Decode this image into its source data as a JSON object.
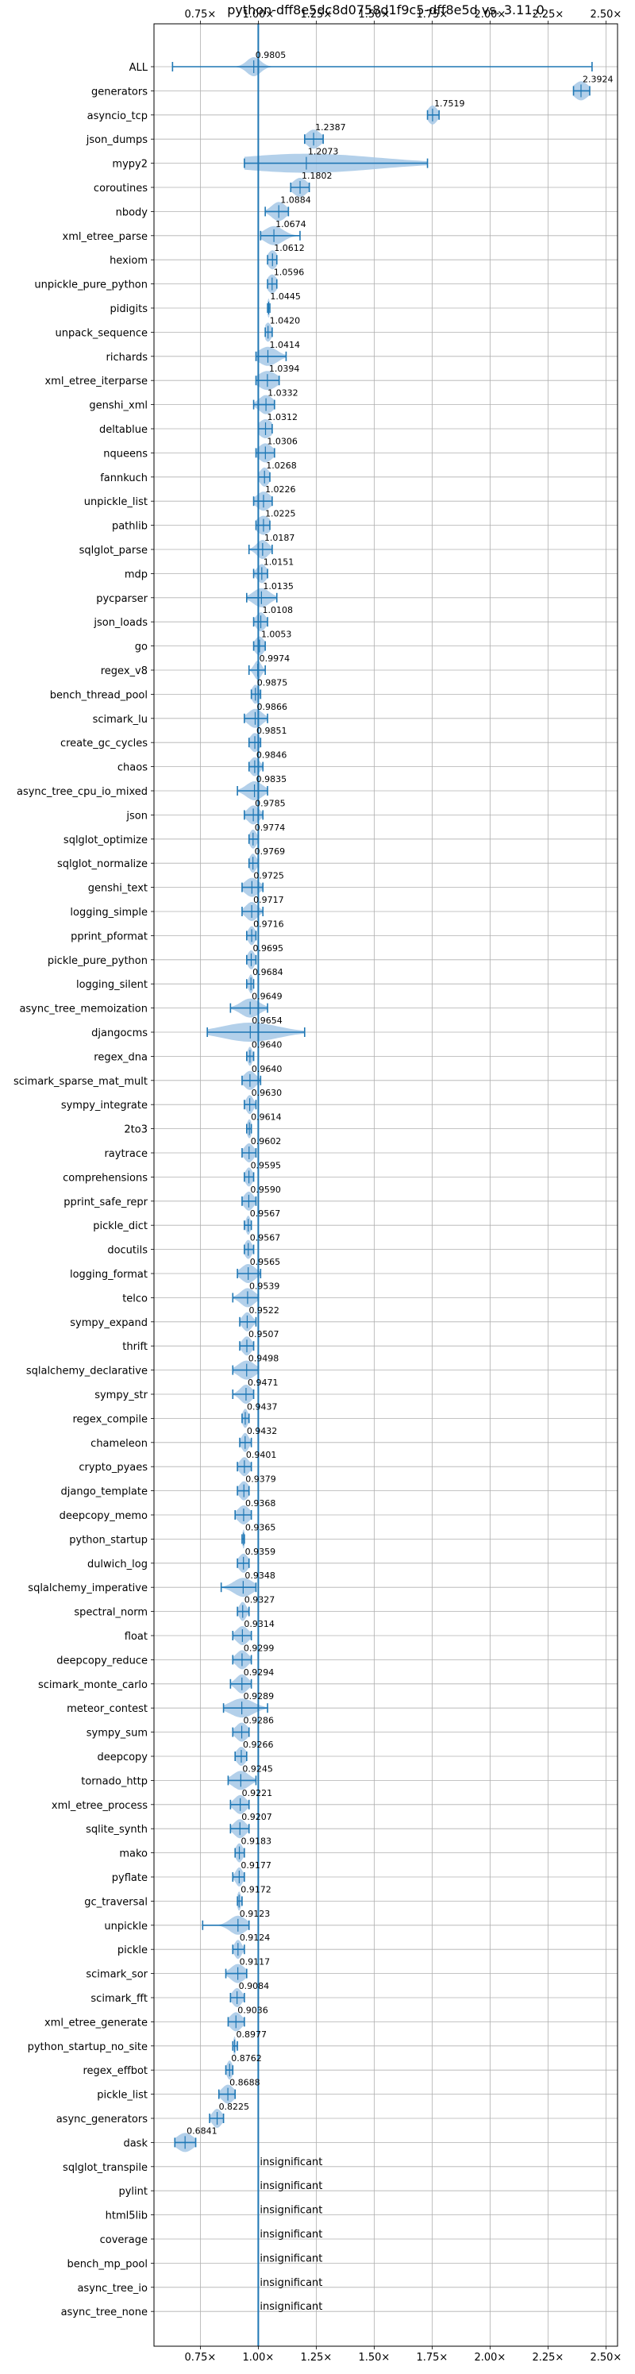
{
  "chart_data": {
    "type": "violin",
    "title": "python-dff8e5dc8d0758d1f9c5-dff8e5d vs. 3.11.0",
    "orientation": "horizontal",
    "xlim": [
      0.55,
      2.55
    ],
    "x_ticks": [
      0.75,
      1.0,
      1.25,
      1.5,
      1.75,
      2.0,
      2.25,
      2.5
    ],
    "x_tick_labels": [
      "0.75×",
      "1.00×",
      "1.25×",
      "1.50×",
      "1.75×",
      "2.00×",
      "2.25×",
      "2.50×"
    ],
    "reference_line": 1.0,
    "grid": true,
    "colors": {
      "violin": "#a6c8e6",
      "line": "#1f77b4"
    },
    "insignificant_label": "insignificant",
    "benchmarks": [
      {
        "name": "ALL",
        "value": 0.9805,
        "label": "0.9805",
        "min": 0.63,
        "max": 2.44,
        "spread": 0.03
      },
      {
        "name": "generators",
        "value": 2.3924,
        "label": "2.3924",
        "min": 2.36,
        "max": 2.43,
        "spread": 0.03
      },
      {
        "name": "asyncio_tcp",
        "value": 1.7519,
        "label": "1.7519",
        "min": 1.73,
        "max": 1.78,
        "spread": 0.02
      },
      {
        "name": "json_dumps",
        "value": 1.2387,
        "label": "1.2387",
        "min": 1.2,
        "max": 1.28,
        "spread": 0.03
      },
      {
        "name": "mypy2",
        "value": 1.2073,
        "label": "1.2073",
        "min": 0.94,
        "max": 1.73,
        "spread": 0.3
      },
      {
        "name": "coroutines",
        "value": 1.1802,
        "label": "1.1802",
        "min": 1.14,
        "max": 1.22,
        "spread": 0.03
      },
      {
        "name": "nbody",
        "value": 1.0884,
        "label": "1.0884",
        "min": 1.03,
        "max": 1.13,
        "spread": 0.03
      },
      {
        "name": "xml_etree_parse",
        "value": 1.0674,
        "label": "1.0674",
        "min": 1.01,
        "max": 1.18,
        "spread": 0.04
      },
      {
        "name": "hexiom",
        "value": 1.0612,
        "label": "1.0612",
        "min": 1.04,
        "max": 1.08,
        "spread": 0.02
      },
      {
        "name": "unpickle_pure_python",
        "value": 1.0596,
        "label": "1.0596",
        "min": 1.04,
        "max": 1.08,
        "spread": 0.02
      },
      {
        "name": "pidigits",
        "value": 1.0445,
        "label": "1.0445",
        "min": 1.04,
        "max": 1.05,
        "spread": 0.005
      },
      {
        "name": "unpack_sequence",
        "value": 1.042,
        "label": "1.0420",
        "min": 1.03,
        "max": 1.06,
        "spread": 0.015
      },
      {
        "name": "richards",
        "value": 1.0414,
        "label": "1.0414",
        "min": 0.99,
        "max": 1.12,
        "spread": 0.04
      },
      {
        "name": "xml_etree_iterparse",
        "value": 1.0394,
        "label": "1.0394",
        "min": 0.99,
        "max": 1.09,
        "spread": 0.04
      },
      {
        "name": "genshi_xml",
        "value": 1.0332,
        "label": "1.0332",
        "min": 0.98,
        "max": 1.07,
        "spread": 0.03
      },
      {
        "name": "deltablue",
        "value": 1.0312,
        "label": "1.0312",
        "min": 1.0,
        "max": 1.06,
        "spread": 0.03
      },
      {
        "name": "nqueens",
        "value": 1.0306,
        "label": "1.0306",
        "min": 0.99,
        "max": 1.07,
        "spread": 0.03
      },
      {
        "name": "fannkuch",
        "value": 1.0268,
        "label": "1.0268",
        "min": 1.0,
        "max": 1.05,
        "spread": 0.02
      },
      {
        "name": "unpickle_list",
        "value": 1.0226,
        "label": "1.0226",
        "min": 0.98,
        "max": 1.06,
        "spread": 0.03
      },
      {
        "name": "pathlib",
        "value": 1.0225,
        "label": "1.0225",
        "min": 0.99,
        "max": 1.05,
        "spread": 0.03
      },
      {
        "name": "sqlglot_parse",
        "value": 1.0187,
        "label": "1.0187",
        "min": 0.96,
        "max": 1.06,
        "spread": 0.025
      },
      {
        "name": "mdp",
        "value": 1.0151,
        "label": "1.0151",
        "min": 0.98,
        "max": 1.04,
        "spread": 0.02
      },
      {
        "name": "pycparser",
        "value": 1.0135,
        "label": "1.0135",
        "min": 0.95,
        "max": 1.08,
        "spread": 0.035
      },
      {
        "name": "json_loads",
        "value": 1.0108,
        "label": "1.0108",
        "min": 0.98,
        "max": 1.04,
        "spread": 0.02
      },
      {
        "name": "go",
        "value": 1.0053,
        "label": "1.0053",
        "min": 0.98,
        "max": 1.03,
        "spread": 0.02
      },
      {
        "name": "regex_v8",
        "value": 0.9974,
        "label": "0.9974",
        "min": 0.96,
        "max": 1.03,
        "spread": 0.015
      },
      {
        "name": "bench_thread_pool",
        "value": 0.9875,
        "label": "0.9875",
        "min": 0.97,
        "max": 1.01,
        "spread": 0.015
      },
      {
        "name": "scimark_lu",
        "value": 0.9866,
        "label": "0.9866",
        "min": 0.94,
        "max": 1.04,
        "spread": 0.03
      },
      {
        "name": "create_gc_cycles",
        "value": 0.9851,
        "label": "0.9851",
        "min": 0.96,
        "max": 1.01,
        "spread": 0.02
      },
      {
        "name": "chaos",
        "value": 0.9846,
        "label": "0.9846",
        "min": 0.96,
        "max": 1.02,
        "spread": 0.02
      },
      {
        "name": "async_tree_cpu_io_mixed",
        "value": 0.9835,
        "label": "0.9835",
        "min": 0.91,
        "max": 1.04,
        "spread": 0.035
      },
      {
        "name": "json",
        "value": 0.9785,
        "label": "0.9785",
        "min": 0.94,
        "max": 1.02,
        "spread": 0.025
      },
      {
        "name": "sqlglot_optimize",
        "value": 0.9774,
        "label": "0.9774",
        "min": 0.96,
        "max": 1.0,
        "spread": 0.015
      },
      {
        "name": "sqlglot_normalize",
        "value": 0.9769,
        "label": "0.9769",
        "min": 0.96,
        "max": 1.0,
        "spread": 0.015
      },
      {
        "name": "genshi_text",
        "value": 0.9725,
        "label": "0.9725",
        "min": 0.93,
        "max": 1.02,
        "spread": 0.03
      },
      {
        "name": "logging_simple",
        "value": 0.9717,
        "label": "0.9717",
        "min": 0.93,
        "max": 1.02,
        "spread": 0.025
      },
      {
        "name": "pprint_pformat",
        "value": 0.9716,
        "label": "0.9716",
        "min": 0.95,
        "max": 0.99,
        "spread": 0.015
      },
      {
        "name": "pickle_pure_python",
        "value": 0.9695,
        "label": "0.9695",
        "min": 0.95,
        "max": 0.99,
        "spread": 0.015
      },
      {
        "name": "logging_silent",
        "value": 0.9684,
        "label": "0.9684",
        "min": 0.95,
        "max": 0.98,
        "spread": 0.01
      },
      {
        "name": "async_tree_memoization",
        "value": 0.9649,
        "label": "0.9649",
        "min": 0.88,
        "max": 1.04,
        "spread": 0.04
      },
      {
        "name": "djangocms",
        "value": 0.9654,
        "label": "0.9654",
        "min": 0.78,
        "max": 1.2,
        "spread": 0.12
      },
      {
        "name": "regex_dna",
        "value": 0.964,
        "label": "0.9640",
        "min": 0.95,
        "max": 0.98,
        "spread": 0.01
      },
      {
        "name": "scimark_sparse_mat_mult",
        "value": 0.964,
        "label": "0.9640",
        "min": 0.93,
        "max": 1.01,
        "spread": 0.025
      },
      {
        "name": "sympy_integrate",
        "value": 0.963,
        "label": "0.9630",
        "min": 0.94,
        "max": 0.99,
        "spread": 0.015
      },
      {
        "name": "2to3",
        "value": 0.9614,
        "label": "0.9614",
        "min": 0.95,
        "max": 0.97,
        "spread": 0.01
      },
      {
        "name": "raytrace",
        "value": 0.9602,
        "label": "0.9602",
        "min": 0.93,
        "max": 0.99,
        "spread": 0.02
      },
      {
        "name": "comprehensions",
        "value": 0.9595,
        "label": "0.9595",
        "min": 0.94,
        "max": 0.98,
        "spread": 0.015
      },
      {
        "name": "pprint_safe_repr",
        "value": 0.959,
        "label": "0.9590",
        "min": 0.93,
        "max": 0.99,
        "spread": 0.02
      },
      {
        "name": "pickle_dict",
        "value": 0.9567,
        "label": "0.9567",
        "min": 0.94,
        "max": 0.97,
        "spread": 0.01
      },
      {
        "name": "docutils",
        "value": 0.9567,
        "label": "0.9567",
        "min": 0.94,
        "max": 0.98,
        "spread": 0.015
      },
      {
        "name": "logging_format",
        "value": 0.9565,
        "label": "0.9565",
        "min": 0.91,
        "max": 1.01,
        "spread": 0.03
      },
      {
        "name": "telco",
        "value": 0.9539,
        "label": "0.9539",
        "min": 0.89,
        "max": 1.0,
        "spread": 0.03
      },
      {
        "name": "sympy_expand",
        "value": 0.9522,
        "label": "0.9522",
        "min": 0.92,
        "max": 0.99,
        "spread": 0.02
      },
      {
        "name": "thrift",
        "value": 0.9507,
        "label": "0.9507",
        "min": 0.92,
        "max": 0.98,
        "spread": 0.02
      },
      {
        "name": "sqlalchemy_declarative",
        "value": 0.9498,
        "label": "0.9498",
        "min": 0.89,
        "max": 1.0,
        "spread": 0.035
      },
      {
        "name": "sympy_str",
        "value": 0.9471,
        "label": "0.9471",
        "min": 0.89,
        "max": 0.98,
        "spread": 0.025
      },
      {
        "name": "regex_compile",
        "value": 0.9437,
        "label": "0.9437",
        "min": 0.93,
        "max": 0.96,
        "spread": 0.012
      },
      {
        "name": "chameleon",
        "value": 0.9432,
        "label": "0.9432",
        "min": 0.92,
        "max": 0.97,
        "spread": 0.015
      },
      {
        "name": "crypto_pyaes",
        "value": 0.9401,
        "label": "0.9401",
        "min": 0.91,
        "max": 0.97,
        "spread": 0.02
      },
      {
        "name": "django_template",
        "value": 0.9379,
        "label": "0.9379",
        "min": 0.91,
        "max": 0.96,
        "spread": 0.02
      },
      {
        "name": "deepcopy_memo",
        "value": 0.9368,
        "label": "0.9368",
        "min": 0.9,
        "max": 0.97,
        "spread": 0.025
      },
      {
        "name": "python_startup",
        "value": 0.9365,
        "label": "0.9365",
        "min": 0.93,
        "max": 0.94,
        "spread": 0.005
      },
      {
        "name": "dulwich_log",
        "value": 0.9359,
        "label": "0.9359",
        "min": 0.91,
        "max": 0.96,
        "spread": 0.02
      },
      {
        "name": "sqlalchemy_imperative",
        "value": 0.9348,
        "label": "0.9348",
        "min": 0.84,
        "max": 0.99,
        "spread": 0.04
      },
      {
        "name": "spectral_norm",
        "value": 0.9327,
        "label": "0.9327",
        "min": 0.91,
        "max": 0.96,
        "spread": 0.015
      },
      {
        "name": "float",
        "value": 0.9314,
        "label": "0.9314",
        "min": 0.89,
        "max": 0.97,
        "spread": 0.025
      },
      {
        "name": "deepcopy_reduce",
        "value": 0.9299,
        "label": "0.9299",
        "min": 0.89,
        "max": 0.97,
        "spread": 0.025
      },
      {
        "name": "scimark_monte_carlo",
        "value": 0.9294,
        "label": "0.9294",
        "min": 0.88,
        "max": 0.97,
        "spread": 0.025
      },
      {
        "name": "meteor_contest",
        "value": 0.9289,
        "label": "0.9289",
        "min": 0.85,
        "max": 1.04,
        "spread": 0.05
      },
      {
        "name": "sympy_sum",
        "value": 0.9286,
        "label": "0.9286",
        "min": 0.89,
        "max": 0.96,
        "spread": 0.025
      },
      {
        "name": "deepcopy",
        "value": 0.9266,
        "label": "0.9266",
        "min": 0.9,
        "max": 0.95,
        "spread": 0.02
      },
      {
        "name": "tornado_http",
        "value": 0.9245,
        "label": "0.9245",
        "min": 0.87,
        "max": 0.99,
        "spread": 0.035
      },
      {
        "name": "xml_etree_process",
        "value": 0.9221,
        "label": "0.9221",
        "min": 0.88,
        "max": 0.96,
        "spread": 0.025
      },
      {
        "name": "sqlite_synth",
        "value": 0.9207,
        "label": "0.9207",
        "min": 0.88,
        "max": 0.96,
        "spread": 0.025
      },
      {
        "name": "mako",
        "value": 0.9183,
        "label": "0.9183",
        "min": 0.9,
        "max": 0.94,
        "spread": 0.015
      },
      {
        "name": "pyflate",
        "value": 0.9177,
        "label": "0.9177",
        "min": 0.89,
        "max": 0.94,
        "spread": 0.015
      },
      {
        "name": "gc_traversal",
        "value": 0.9172,
        "label": "0.9172",
        "min": 0.91,
        "max": 0.93,
        "spread": 0.008
      },
      {
        "name": "unpickle",
        "value": 0.9123,
        "label": "0.9123",
        "min": 0.76,
        "max": 0.96,
        "spread": 0.035
      },
      {
        "name": "pickle",
        "value": 0.9124,
        "label": "0.9124",
        "min": 0.89,
        "max": 0.94,
        "spread": 0.015
      },
      {
        "name": "scimark_sor",
        "value": 0.9117,
        "label": "0.9117",
        "min": 0.86,
        "max": 0.95,
        "spread": 0.03
      },
      {
        "name": "scimark_fft",
        "value": 0.9084,
        "label": "0.9084",
        "min": 0.88,
        "max": 0.94,
        "spread": 0.02
      },
      {
        "name": "xml_etree_generate",
        "value": 0.9036,
        "label": "0.9036",
        "min": 0.87,
        "max": 0.94,
        "spread": 0.025
      },
      {
        "name": "python_startup_no_site",
        "value": 0.8977,
        "label": "0.8977",
        "min": 0.89,
        "max": 0.91,
        "spread": 0.005
      },
      {
        "name": "regex_effbot",
        "value": 0.8762,
        "label": "0.8762",
        "min": 0.86,
        "max": 0.89,
        "spread": 0.012
      },
      {
        "name": "pickle_list",
        "value": 0.8688,
        "label": "0.8688",
        "min": 0.83,
        "max": 0.9,
        "spread": 0.025
      },
      {
        "name": "async_generators",
        "value": 0.8225,
        "label": "0.8225",
        "min": 0.79,
        "max": 0.85,
        "spread": 0.02
      },
      {
        "name": "dask",
        "value": 0.6841,
        "label": "0.6841",
        "min": 0.64,
        "max": 0.73,
        "spread": 0.035
      },
      {
        "name": "sqlglot_transpile",
        "insignificant": true
      },
      {
        "name": "pylint",
        "insignificant": true
      },
      {
        "name": "html5lib",
        "insignificant": true
      },
      {
        "name": "coverage",
        "insignificant": true
      },
      {
        "name": "bench_mp_pool",
        "insignificant": true
      },
      {
        "name": "async_tree_io",
        "insignificant": true
      },
      {
        "name": "async_tree_none",
        "insignificant": true
      }
    ]
  }
}
